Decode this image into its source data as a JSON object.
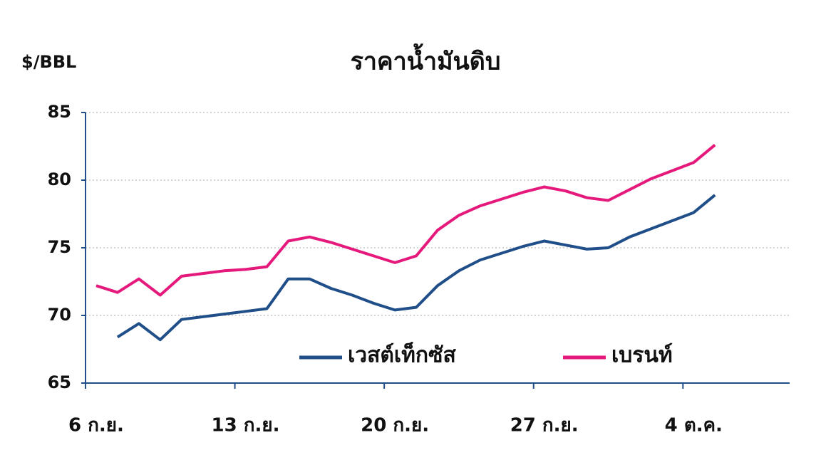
{
  "chart_data": {
    "type": "line",
    "title": "ราคาน้ำมันดิบ",
    "y_label": "$/BBL",
    "categories": [
      "6 ก.ย.",
      null,
      null,
      null,
      null,
      null,
      null,
      "13 ก.ย.",
      null,
      null,
      null,
      null,
      null,
      null,
      "20 ก.ย.",
      null,
      null,
      null,
      null,
      null,
      null,
      "27 ก.ย.",
      null,
      null,
      null,
      null,
      null,
      null,
      "4 ต.ค.",
      null,
      null,
      null,
      null
    ],
    "series": [
      {
        "name": "เวสต์เท็กซัส",
        "color": "#1f4e89",
        "values": [
          null,
          68.4,
          69.4,
          68.2,
          69.7,
          69.9,
          70.1,
          70.3,
          70.5,
          72.7,
          72.7,
          72.0,
          71.5,
          70.9,
          70.4,
          70.6,
          72.2,
          73.3,
          74.1,
          74.6,
          75.1,
          75.5,
          75.2,
          74.9,
          75.0,
          75.8,
          76.4,
          77.0,
          77.6,
          78.9,
          null,
          null,
          null
        ]
      },
      {
        "name": "เบรนท์",
        "color": "#e5197c",
        "values": [
          72.2,
          71.7,
          72.7,
          71.5,
          72.9,
          73.1,
          73.3,
          73.4,
          73.6,
          75.5,
          75.8,
          75.4,
          74.9,
          74.4,
          73.9,
          74.4,
          76.3,
          77.4,
          78.1,
          78.6,
          79.1,
          79.5,
          79.2,
          78.7,
          78.5,
          79.3,
          80.1,
          80.7,
          81.3,
          82.6,
          null,
          null,
          null
        ]
      }
    ],
    "ylim": [
      65,
      85
    ],
    "yticks": [
      65,
      70,
      75,
      80,
      85
    ],
    "grid": true,
    "legend": "bottom"
  }
}
